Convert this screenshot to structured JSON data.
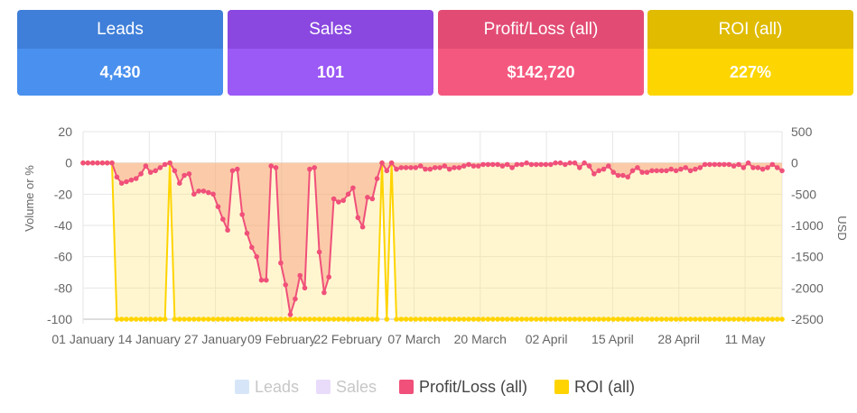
{
  "cards": [
    {
      "title": "Leads",
      "value": "4,430",
      "head": "#3f7fd9",
      "body": "#4a90ee"
    },
    {
      "title": "Sales",
      "value": "101",
      "head": "#8a48e0",
      "body": "#9b59f5"
    },
    {
      "title": "Profit/Loss (all)",
      "value": "$142,720",
      "head": "#e24c74",
      "body": "#f5587f"
    },
    {
      "title": "ROI (all)",
      "value": "227%",
      "head": "#e0bb00",
      "body": "#fdd500"
    }
  ],
  "chart_data": {
    "type": "line",
    "title": "",
    "ylabel": "Volume or %",
    "y2label": "USD",
    "ylim": [
      -100,
      20
    ],
    "y2lim": [
      -2500,
      500
    ],
    "yticks": [
      "20",
      "0",
      "-20",
      "-40",
      "-60",
      "-80",
      "-100"
    ],
    "y2ticks": [
      "500",
      "0",
      "-500",
      "-1000",
      "-1500",
      "-2000",
      "-2500"
    ],
    "xticks": [
      "01 January",
      "14 January",
      "27 January",
      "09 February",
      "22 February",
      "07 March",
      "20 March",
      "02 April",
      "15 April",
      "28 April",
      "11 May"
    ],
    "legend_position": "bottom",
    "grid": true,
    "series": [
      {
        "name": "Leads",
        "color": "#d6e6f8",
        "axis": "left",
        "hidden": true,
        "values": []
      },
      {
        "name": "Sales",
        "color": "#e9dcfa",
        "axis": "left",
        "hidden": true,
        "values": []
      },
      {
        "name": "Profit/Loss (all)",
        "color": "#f0507a",
        "fill": "rgba(245,140,110,0.40)",
        "axis": "left",
        "values": [
          0,
          0,
          0,
          0,
          0,
          0,
          0,
          -9,
          -13,
          -12,
          -11,
          -10,
          -7,
          -2,
          -6,
          -5,
          -3,
          -1,
          0,
          -5,
          -13,
          -8,
          -7,
          -20,
          -18,
          -18,
          -19,
          -20,
          -28,
          -36,
          -43,
          -5,
          -4,
          -33,
          -45,
          -54,
          -60,
          -75,
          -75,
          -2,
          -3,
          -64,
          -78,
          -97,
          -87,
          -72,
          -80,
          -4,
          -3,
          -57,
          -83,
          -73,
          -23,
          -25,
          -24,
          -20,
          -16,
          -35,
          -41,
          -22,
          -23,
          -10,
          0,
          -5,
          0,
          -4,
          -3,
          -3,
          -3,
          -3,
          -2,
          -4,
          -4,
          -3,
          -3,
          -2,
          -4,
          -3,
          -3,
          -2,
          -1,
          -2,
          -2,
          -1,
          -1,
          -1,
          -1,
          -2,
          -1,
          -3,
          -1,
          -1,
          0,
          -1,
          -1,
          -1,
          -1,
          -1,
          0,
          0,
          -1,
          0,
          0,
          -3,
          0,
          -2,
          -7,
          -5,
          -4,
          -2,
          -6,
          -8,
          -8,
          -9,
          -5,
          -3,
          -6,
          -6,
          -5,
          -5,
          -5,
          -5,
          -4,
          -5,
          -4,
          -3,
          -5,
          -4,
          -3,
          -1,
          -1,
          -1,
          -1,
          -1,
          -1,
          -2,
          -1,
          -3,
          0,
          -3,
          -3,
          -4,
          -3,
          -1,
          -3,
          -5
        ]
      },
      {
        "name": "ROI (all)",
        "color": "#ffd400",
        "fill": "rgba(255,230,120,0.35)",
        "axis": "left",
        "values": [
          0,
          0,
          0,
          0,
          0,
          0,
          0,
          -100,
          -100,
          -100,
          -100,
          -100,
          -100,
          -100,
          -100,
          -100,
          -100,
          -100,
          0,
          -100,
          -100,
          -100,
          -100,
          -100,
          -100,
          -100,
          -100,
          -100,
          -100,
          -100,
          -100,
          -100,
          -100,
          -100,
          -100,
          -100,
          -100,
          -100,
          -100,
          -100,
          -100,
          -100,
          -100,
          -100,
          -100,
          -100,
          -100,
          -100,
          -100,
          -100,
          -100,
          -100,
          -100,
          -100,
          -100,
          -100,
          -100,
          -100,
          -100,
          -100,
          -100,
          -100,
          0,
          -100,
          0,
          -100,
          -100,
          -100,
          -100,
          -100,
          -100,
          -100,
          -100,
          -100,
          -100,
          -100,
          -100,
          -100,
          -100,
          -100,
          -100,
          -100,
          -100,
          -100,
          -100,
          -100,
          -100,
          -100,
          -100,
          -100,
          -100,
          -100,
          -100,
          -100,
          -100,
          -100,
          -100,
          -100,
          -100,
          -100,
          -100,
          -100,
          -100,
          -100,
          -100,
          -100,
          -100,
          -100,
          -100,
          -100,
          -100,
          -100,
          -100,
          -100,
          -100,
          -100,
          -100,
          -100,
          -100,
          -100,
          -100,
          -100,
          -100,
          -100,
          -100,
          -100,
          -100,
          -100,
          -100,
          -100,
          -100,
          -100,
          -100,
          -100,
          -100,
          -100,
          -100,
          -100,
          -100,
          -100,
          -100,
          -100,
          -100,
          -100,
          -100,
          -100
        ]
      }
    ]
  },
  "legend": [
    {
      "label": "Leads",
      "color": "#d6e6f8",
      "dim": true
    },
    {
      "label": "Sales",
      "color": "#e9dcfa",
      "dim": true
    },
    {
      "label": "Profit/Loss (all)",
      "color": "#f0507a",
      "dim": false
    },
    {
      "label": "ROI (all)",
      "color": "#ffd400",
      "dim": false
    }
  ]
}
